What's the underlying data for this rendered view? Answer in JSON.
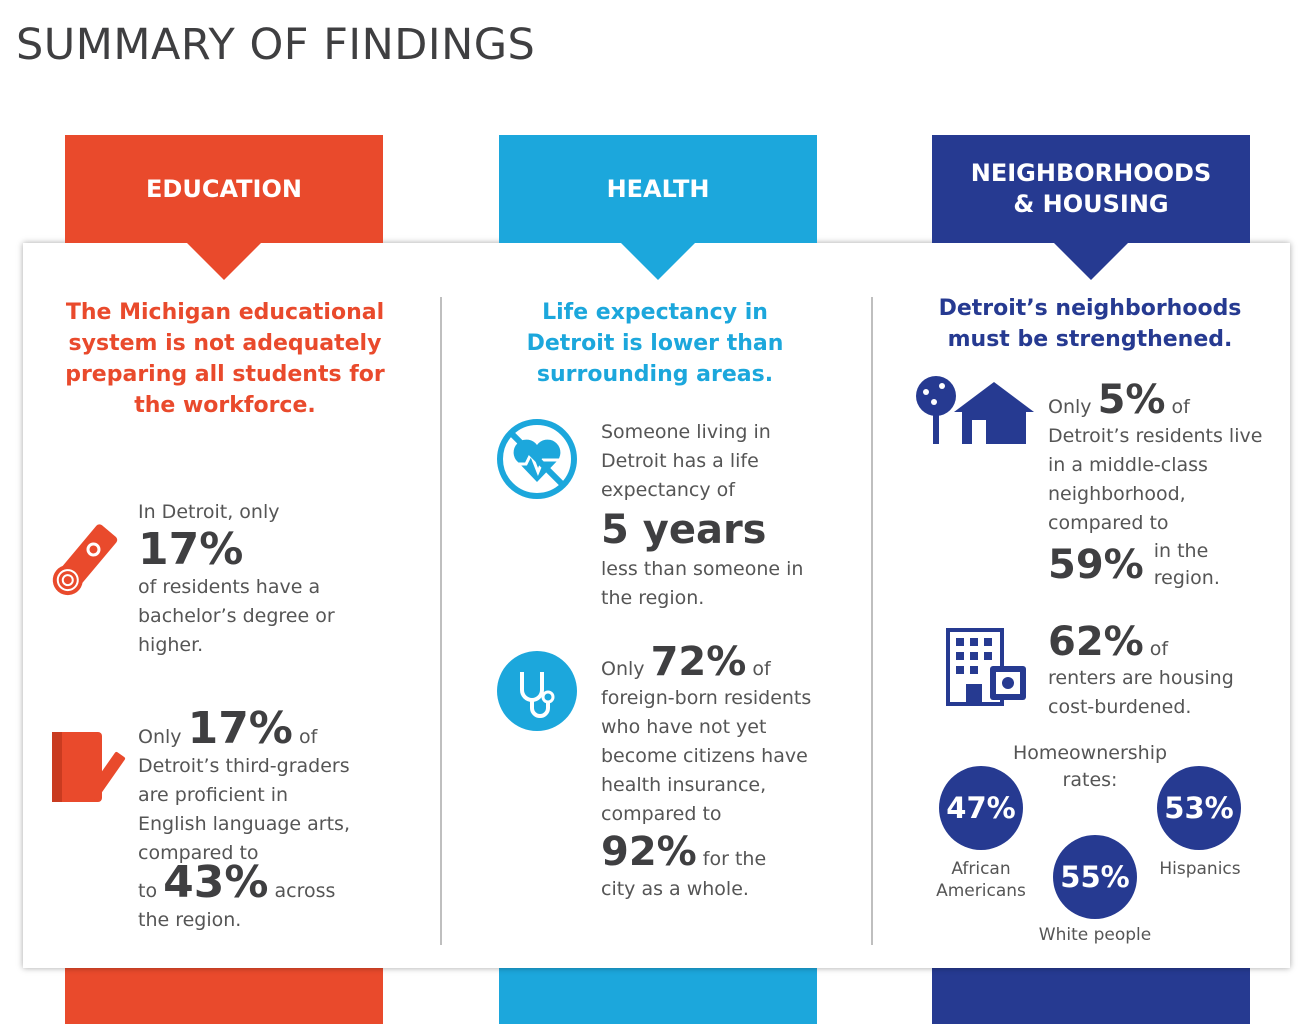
{
  "title": "SUMMARY OF FINDINGS",
  "colors": {
    "education": "#e94a2c",
    "health": "#1ca7dc",
    "housing": "#263a91"
  },
  "education": {
    "label": "EDUCATION",
    "headline": "The Michigan educational system is not adequately preparing all students for the workforce.",
    "stat1": {
      "pre": "In Detroit, only",
      "value": "17%",
      "post": "of residents have a bachelor’s degree or higher.",
      "icon": "diploma-icon"
    },
    "stat2": {
      "pre": "Only",
      "value": "17%",
      "mid_after": "of",
      "text": "Detroit’s third-graders are proficient in English language arts, compared to",
      "to": "to",
      "value2": "43%",
      "across": "across",
      "end": "the region.",
      "icon": "book-pencil-icon"
    }
  },
  "health": {
    "label": "HEALTH",
    "headline": "Life expectancy in Detroit is lower than surrounding areas.",
    "stat1": {
      "pre": "Someone living in Detroit has a life expectancy of",
      "value": "5 years",
      "post": "less than someone in the region.",
      "icon": "heart-crossed-icon"
    },
    "stat2": {
      "pre": "Only",
      "value": "72%",
      "of": "of",
      "text": "foreign-born residents who have not yet become citizens have health insurance, compared to",
      "value2": "92%",
      "post": "for the",
      "end": "city as a whole.",
      "icon": "stethoscope-icon"
    }
  },
  "housing": {
    "label1": "NEIGHBORHOODS",
    "label2": "& HOUSING",
    "headline": "Detroit’s neighborhoods must be strengthened.",
    "stat1": {
      "pre": "Only",
      "value": "5%",
      "of": "of",
      "text": "Detroit’s residents live in a middle-class neighborhood, compared to",
      "value2": "59%",
      "post1": "in the",
      "post2": "region.",
      "icon": "house-tree-icon"
    },
    "stat2": {
      "value": "62%",
      "of": "of",
      "text": "renters are housing cost-burdened.",
      "icon": "building-money-icon"
    },
    "homeownership": {
      "label1": "Homeownership",
      "label2": "rates:",
      "groups": [
        {
          "value": "47%",
          "label1": "African",
          "label2": "Americans"
        },
        {
          "value": "55%",
          "label1": "White people",
          "label2": ""
        },
        {
          "value": "53%",
          "label1": "Hispanics",
          "label2": ""
        }
      ]
    }
  }
}
